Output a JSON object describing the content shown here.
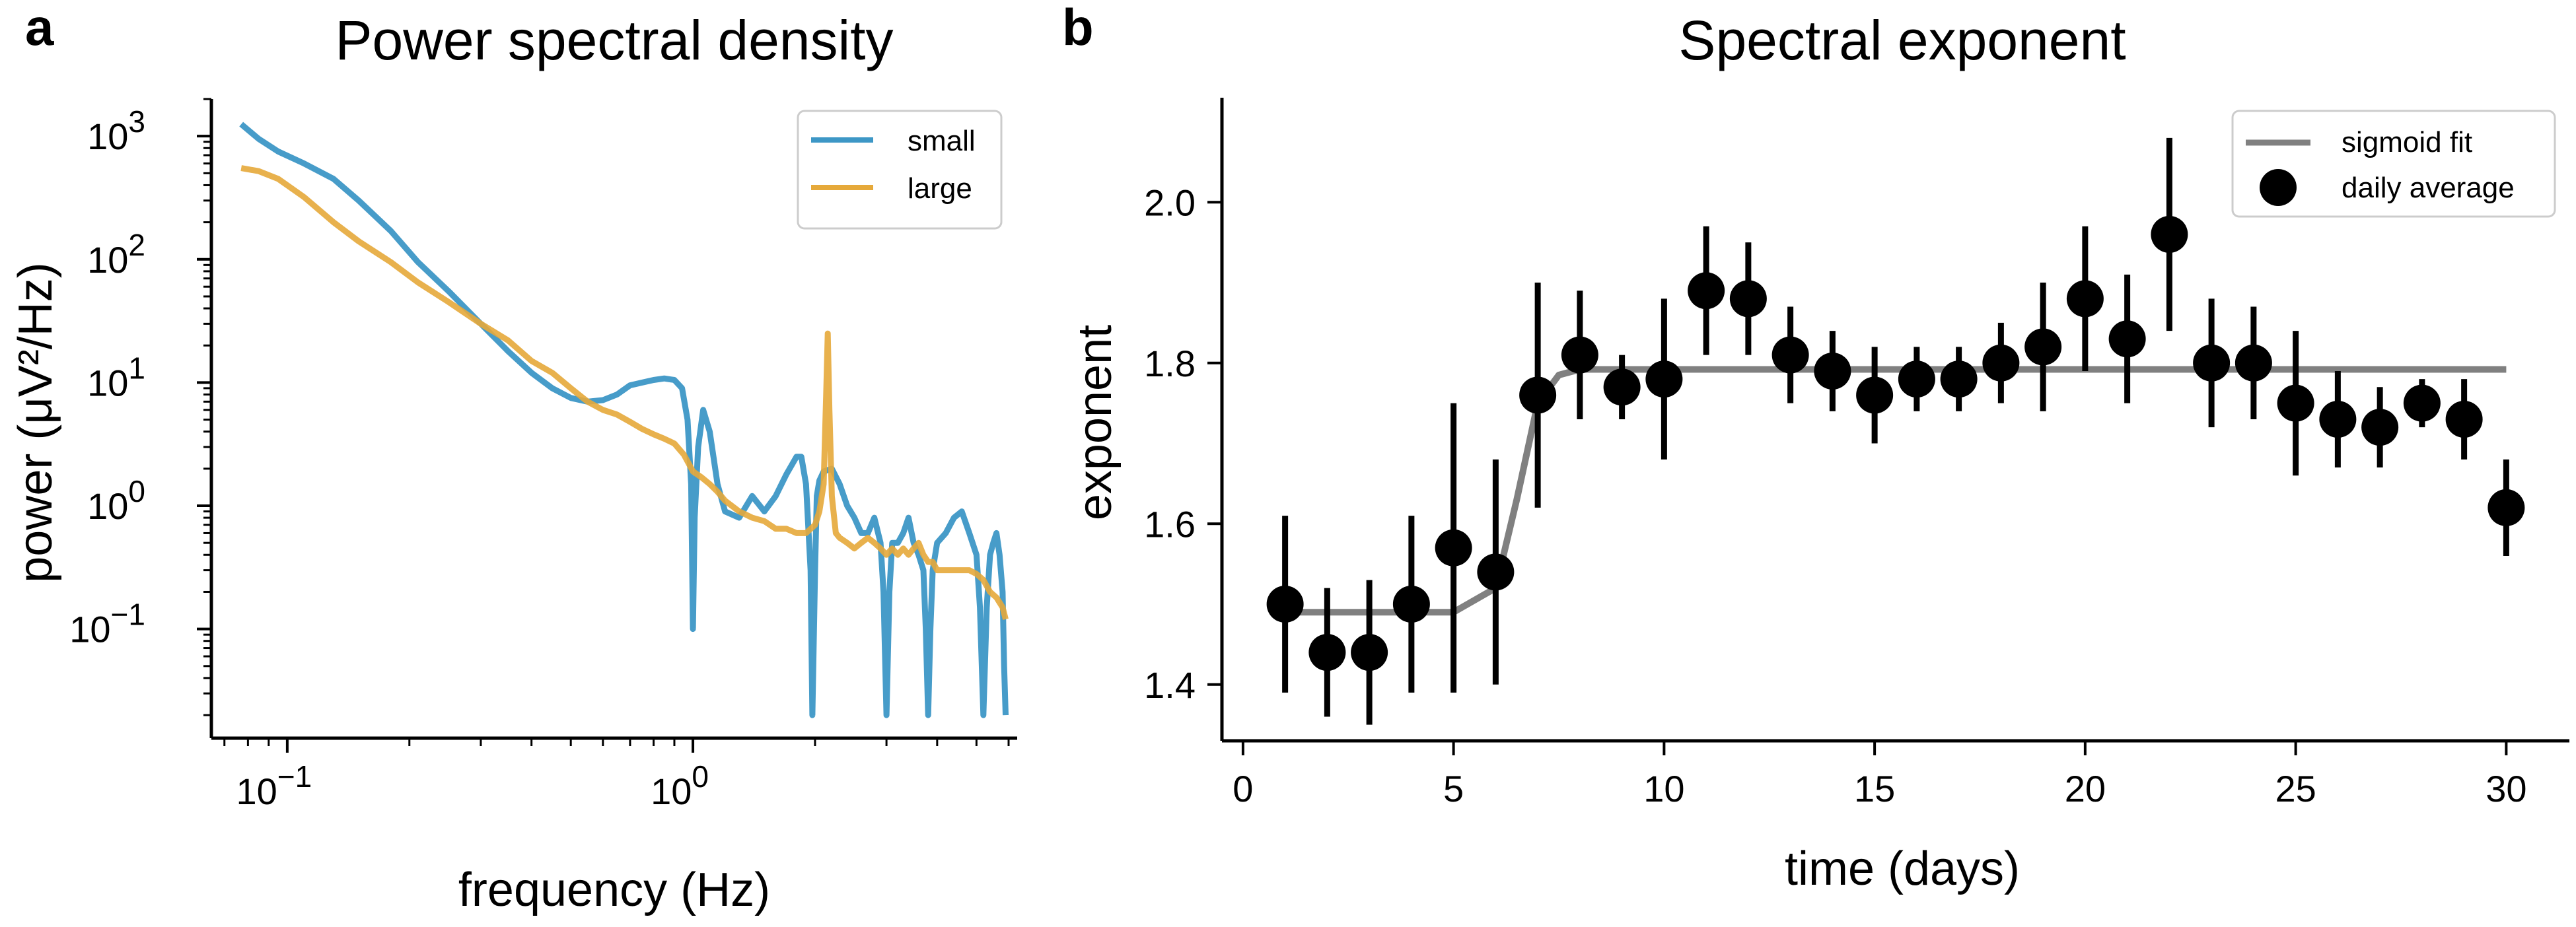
{
  "panels": {
    "a": {
      "letter": "a"
    },
    "b": {
      "letter": "b"
    }
  },
  "chart_data": [
    {
      "type": "line",
      "title": "Power spectral density",
      "xlabel": "frequency (Hz)",
      "ylabel": "power (μV²/Hz)",
      "xscale": "log",
      "yscale": "log",
      "xlim": [
        0.065,
        6.3
      ],
      "ylim": [
        0.013,
        2000
      ],
      "xtick_labels": [
        {
          "value": 0.1,
          "exp": "−1"
        },
        {
          "value": 1,
          "exp": "0"
        }
      ],
      "ytick_labels": [
        {
          "value": 1000,
          "exp": "3"
        },
        {
          "value": 100,
          "exp": "2"
        },
        {
          "value": 10,
          "exp": "1"
        },
        {
          "value": 1,
          "exp": "0"
        },
        {
          "value": 0.1,
          "exp": "−1"
        }
      ],
      "tick_base": "10",
      "legend_position": "top-right",
      "grid": false,
      "series": [
        {
          "name": "small",
          "color": "#3d97c6",
          "x": [
            0.077,
            0.085,
            0.095,
            0.11,
            0.13,
            0.15,
            0.18,
            0.21,
            0.25,
            0.3,
            0.35,
            0.4,
            0.45,
            0.5,
            0.55,
            0.6,
            0.65,
            0.7,
            0.75,
            0.8,
            0.85,
            0.9,
            0.94,
            0.97,
            0.99,
            1.0,
            1.01,
            1.03,
            1.06,
            1.1,
            1.15,
            1.2,
            1.3,
            1.4,
            1.5,
            1.6,
            1.7,
            1.8,
            1.85,
            1.9,
            1.95,
            1.97,
            2.0,
            2.02,
            2.05,
            2.1,
            2.2,
            2.3,
            2.4,
            2.5,
            2.6,
            2.7,
            2.8,
            2.9,
            2.95,
            3.0,
            3.05,
            3.1,
            3.2,
            3.3,
            3.4,
            3.5,
            3.6,
            3.7,
            3.75,
            3.8,
            3.85,
            3.9,
            4.0,
            4.2,
            4.4,
            4.6,
            4.8,
            5.0,
            5.1,
            5.2,
            5.3,
            5.4,
            5.5,
            5.6,
            5.7,
            5.8,
            5.85,
            5.9
          ],
          "y": [
            1250,
            950,
            750,
            600,
            450,
            300,
            170,
            95,
            55,
            30,
            18,
            12,
            9,
            7.5,
            7,
            7.2,
            8,
            9.5,
            10,
            10.5,
            10.8,
            10.5,
            9,
            5,
            1.5,
            0.1,
            0.8,
            3,
            6,
            4,
            1.5,
            0.9,
            0.8,
            1.2,
            0.9,
            1.2,
            1.8,
            2.5,
            2.5,
            1.5,
            0.3,
            0.02,
            0.3,
            1.2,
            1.6,
            1.9,
            2.0,
            1.5,
            1.0,
            0.8,
            0.6,
            0.6,
            0.8,
            0.5,
            0.2,
            0.02,
            0.2,
            0.5,
            0.5,
            0.6,
            0.8,
            0.5,
            0.4,
            0.3,
            0.1,
            0.02,
            0.1,
            0.3,
            0.5,
            0.6,
            0.8,
            0.9,
            0.6,
            0.4,
            0.15,
            0.02,
            0.15,
            0.4,
            0.5,
            0.6,
            0.4,
            0.2,
            0.05,
            0.02
          ]
        },
        {
          "name": "large",
          "color": "#e6a93a",
          "x": [
            0.077,
            0.085,
            0.095,
            0.11,
            0.13,
            0.15,
            0.18,
            0.21,
            0.25,
            0.3,
            0.35,
            0.4,
            0.45,
            0.5,
            0.55,
            0.6,
            0.65,
            0.7,
            0.75,
            0.8,
            0.85,
            0.9,
            0.95,
            1.0,
            1.05,
            1.1,
            1.15,
            1.2,
            1.3,
            1.4,
            1.5,
            1.6,
            1.7,
            1.8,
            1.9,
            2.0,
            2.05,
            2.1,
            2.13,
            2.15,
            2.17,
            2.2,
            2.25,
            2.3,
            2.4,
            2.5,
            2.6,
            2.7,
            2.8,
            2.9,
            3.0,
            3.1,
            3.2,
            3.3,
            3.4,
            3.5,
            3.6,
            3.7,
            3.8,
            3.9,
            4.0,
            4.2,
            4.4,
            4.6,
            4.8,
            5.0,
            5.2,
            5.4,
            5.6,
            5.8,
            5.9
          ],
          "y": [
            550,
            520,
            450,
            320,
            200,
            140,
            95,
            65,
            45,
            30,
            22,
            15,
            12,
            9,
            7,
            6,
            5.5,
            4.8,
            4.2,
            3.8,
            3.5,
            3.2,
            2.6,
            1.9,
            1.7,
            1.5,
            1.3,
            1.1,
            0.9,
            0.8,
            0.75,
            0.65,
            0.65,
            0.6,
            0.6,
            0.7,
            0.9,
            1.5,
            8,
            25,
            6,
            1.2,
            0.6,
            0.55,
            0.5,
            0.45,
            0.5,
            0.55,
            0.5,
            0.45,
            0.4,
            0.45,
            0.4,
            0.45,
            0.4,
            0.45,
            0.5,
            0.4,
            0.35,
            0.35,
            0.3,
            0.3,
            0.3,
            0.3,
            0.3,
            0.28,
            0.25,
            0.2,
            0.18,
            0.15,
            0.12
          ]
        }
      ]
    },
    {
      "type": "scatter",
      "title": "Spectral exponent",
      "xlabel": "time (days)",
      "ylabel": "exponent",
      "xlim": [
        -0.5,
        31.5
      ],
      "ylim": [
        1.33,
        2.13
      ],
      "xticks": [
        0,
        5,
        10,
        15,
        20,
        25,
        30
      ],
      "yticks": [
        1.4,
        1.6,
        1.8,
        2.0
      ],
      "xtick_labels": [
        "0",
        "5",
        "10",
        "15",
        "20",
        "25",
        "30"
      ],
      "ytick_labels": [
        "1.4",
        "1.6",
        "1.8",
        "2.0"
      ],
      "legend_position": "top-right",
      "grid": false,
      "series": [
        {
          "name": "sigmoid fit",
          "kind": "line",
          "color": "#808080",
          "x": [
            1,
            5,
            6,
            6.5,
            7,
            7.5,
            8,
            30
          ],
          "y": [
            1.49,
            1.49,
            1.52,
            1.63,
            1.75,
            1.785,
            1.792,
            1.792
          ]
        },
        {
          "name": "daily average",
          "kind": "errorbar",
          "color": "#000000",
          "x": [
            1,
            2,
            3,
            4,
            5,
            6,
            7,
            8,
            9,
            10,
            11,
            12,
            13,
            14,
            15,
            16,
            17,
            18,
            19,
            20,
            21,
            22,
            23,
            24,
            25,
            26,
            27,
            28,
            29,
            30
          ],
          "y": [
            1.5,
            1.44,
            1.44,
            1.5,
            1.57,
            1.54,
            1.76,
            1.81,
            1.77,
            1.78,
            1.89,
            1.88,
            1.81,
            1.79,
            1.76,
            1.78,
            1.78,
            1.8,
            1.82,
            1.88,
            1.83,
            1.96,
            1.8,
            1.8,
            1.75,
            1.73,
            1.72,
            1.75,
            1.73,
            1.62
          ],
          "err": [
            0.11,
            0.08,
            0.09,
            0.11,
            0.18,
            0.14,
            0.14,
            0.08,
            0.04,
            0.1,
            0.08,
            0.07,
            0.06,
            0.05,
            0.06,
            0.04,
            0.04,
            0.05,
            0.08,
            0.09,
            0.08,
            0.12,
            0.08,
            0.07,
            0.09,
            0.06,
            0.05,
            0.03,
            0.05,
            0.06
          ]
        }
      ]
    }
  ]
}
